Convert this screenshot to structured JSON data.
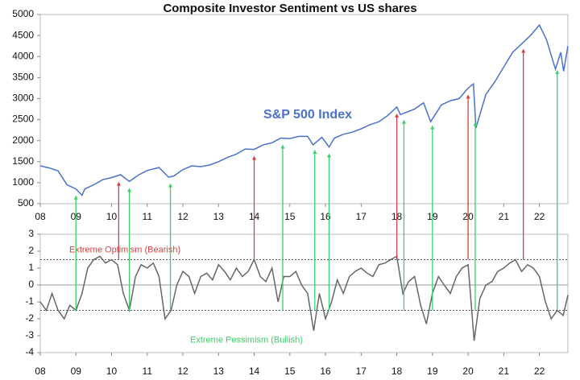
{
  "chart_data": [
    {
      "type": "line",
      "title": "Composite Investor Sentiment vs US shares",
      "annotation": "S&P 500 Index",
      "x": [
        2008,
        2008.25,
        2008.5,
        2008.75,
        2009,
        2009.17,
        2009.25,
        2009.5,
        2009.75,
        2010,
        2010.25,
        2010.5,
        2010.75,
        2011,
        2011.33,
        2011.6,
        2011.75,
        2012,
        2012.25,
        2012.5,
        2012.75,
        2013,
        2013.25,
        2013.5,
        2013.75,
        2014,
        2014.25,
        2014.5,
        2014.75,
        2015,
        2015.25,
        2015.5,
        2015.65,
        2015.9,
        2016.1,
        2016.25,
        2016.5,
        2016.75,
        2017,
        2017.25,
        2017.5,
        2017.75,
        2018,
        2018.1,
        2018.5,
        2018.75,
        2018.95,
        2019.25,
        2019.5,
        2019.75,
        2020,
        2020.15,
        2020.22,
        2020.5,
        2020.75,
        2021,
        2021.25,
        2021.5,
        2021.75,
        2022,
        2022.2,
        2022.45,
        2022.6,
        2022.68,
        2022.8
      ],
      "series": [
        {
          "color": "#4a72c8",
          "values": [
            1400,
            1350,
            1280,
            950,
            850,
            700,
            850,
            950,
            1070,
            1120,
            1190,
            1030,
            1180,
            1290,
            1360,
            1130,
            1160,
            1310,
            1400,
            1380,
            1420,
            1500,
            1600,
            1680,
            1800,
            1790,
            1900,
            1950,
            2060,
            2050,
            2100,
            2100,
            1900,
            2080,
            1850,
            2060,
            2150,
            2200,
            2280,
            2380,
            2450,
            2600,
            2800,
            2620,
            2750,
            2900,
            2450,
            2850,
            2950,
            3000,
            3250,
            3350,
            2300,
            3100,
            3400,
            3750,
            4100,
            4300,
            4500,
            4750,
            4400,
            3700,
            4100,
            3650,
            4250
          ]
        }
      ],
      "xlim": [
        2008,
        2022.8
      ],
      "xticks": [
        {
          "value": 2008,
          "label": "08"
        },
        {
          "value": 2009,
          "label": "09"
        },
        {
          "value": 2010,
          "label": "10"
        },
        {
          "value": 2011,
          "label": "11"
        },
        {
          "value": 2012,
          "label": "12"
        },
        {
          "value": 2013,
          "label": "13"
        },
        {
          "value": 2014,
          "label": "14"
        },
        {
          "value": 2015,
          "label": "15"
        },
        {
          "value": 2016,
          "label": "16"
        },
        {
          "value": 2017,
          "label": "17"
        },
        {
          "value": 2018,
          "label": "18"
        },
        {
          "value": 2019,
          "label": "19"
        },
        {
          "value": 2020,
          "label": "20"
        },
        {
          "value": 2021,
          "label": "21"
        },
        {
          "value": 2022,
          "label": "22"
        }
      ],
      "ylim": [
        500,
        5000
      ],
      "yticks": [
        500,
        1000,
        1500,
        2000,
        2500,
        3000,
        3500,
        4000,
        4500,
        5000
      ],
      "signals": [
        {
          "x": 2010.2,
          "color": "#d94040"
        },
        {
          "x": 2014,
          "color": "#d94040"
        },
        {
          "x": 2018,
          "color": "#d94040"
        },
        {
          "x": 2020,
          "color": "#d94040"
        },
        {
          "x": 2021.55,
          "color": "#d94040"
        },
        {
          "x": 2009,
          "color": "#3ccf6a"
        },
        {
          "x": 2010.5,
          "color": "#3ccf6a"
        },
        {
          "x": 2011.65,
          "color": "#3ccf6a"
        },
        {
          "x": 2014.8,
          "color": "#3ccf6a"
        },
        {
          "x": 2015.7,
          "color": "#3ccf6a"
        },
        {
          "x": 2016.1,
          "color": "#3ccf6a"
        },
        {
          "x": 2018.2,
          "color": "#3ccf6a"
        },
        {
          "x": 2019,
          "color": "#3ccf6a"
        },
        {
          "x": 2020.2,
          "color": "#3ccf6a"
        },
        {
          "x": 2022.5,
          "color": "#3ccf6a"
        }
      ]
    },
    {
      "type": "line",
      "x": [
        2008,
        2008.17,
        2008.33,
        2008.5,
        2008.67,
        2008.83,
        2009,
        2009.17,
        2009.33,
        2009.5,
        2009.67,
        2009.83,
        2010,
        2010.17,
        2010.33,
        2010.5,
        2010.67,
        2010.83,
        2011,
        2011.17,
        2011.33,
        2011.5,
        2011.67,
        2011.83,
        2012,
        2012.17,
        2012.33,
        2012.5,
        2012.67,
        2012.83,
        2013,
        2013.17,
        2013.33,
        2013.5,
        2013.67,
        2013.83,
        2014,
        2014.17,
        2014.33,
        2014.5,
        2014.67,
        2014.83,
        2015,
        2015.17,
        2015.33,
        2015.5,
        2015.67,
        2015.83,
        2016,
        2016.17,
        2016.33,
        2016.5,
        2016.67,
        2016.83,
        2017,
        2017.17,
        2017.33,
        2017.5,
        2017.67,
        2017.83,
        2018,
        2018.17,
        2018.33,
        2018.5,
        2018.67,
        2018.83,
        2019,
        2019.17,
        2019.33,
        2019.5,
        2019.67,
        2019.83,
        2020,
        2020.17,
        2020.33,
        2020.5,
        2020.67,
        2020.83,
        2021,
        2021.17,
        2021.33,
        2021.5,
        2021.67,
        2021.83,
        2022,
        2022.17,
        2022.33,
        2022.5,
        2022.67,
        2022.8
      ],
      "series": [
        {
          "color": "#666666",
          "values": [
            -1,
            -1.5,
            -0.5,
            -1.5,
            -2,
            -1.2,
            -1.5,
            -0.5,
            1,
            1.5,
            1.7,
            1.3,
            1.5,
            1.2,
            -0.5,
            -1.5,
            0.5,
            1.2,
            1,
            1.3,
            0.5,
            -2,
            -1.5,
            0,
            0.8,
            0.5,
            -0.5,
            0.5,
            0.7,
            0.3,
            1.2,
            0.8,
            0.3,
            1,
            0.5,
            0.8,
            1.5,
            0.5,
            0.2,
            1,
            -1,
            0.5,
            0.5,
            0.8,
            0,
            -0.5,
            -2.7,
            -0.5,
            -2,
            -1,
            0.3,
            -0.5,
            0.5,
            0.8,
            1,
            0.7,
            0.5,
            1.2,
            1.3,
            1.5,
            1.7,
            -0.5,
            0.2,
            0.5,
            -1.2,
            -2.3,
            -0.5,
            0.5,
            0,
            -0.5,
            0.5,
            1,
            1.2,
            -3.3,
            -0.8,
            0,
            0.2,
            0.8,
            1,
            1.3,
            1.5,
            0.8,
            1.2,
            1,
            0.5,
            -1,
            -2,
            -1.5,
            -1.8,
            -0.6
          ]
        }
      ],
      "xlim": [
        2008,
        2022.8
      ],
      "xticks": [
        {
          "value": 2008,
          "label": "08"
        },
        {
          "value": 2009,
          "label": "09"
        },
        {
          "value": 2010,
          "label": "10"
        },
        {
          "value": 2011,
          "label": "11"
        },
        {
          "value": 2012,
          "label": "12"
        },
        {
          "value": 2013,
          "label": "13"
        },
        {
          "value": 2014,
          "label": "14"
        },
        {
          "value": 2015,
          "label": "15"
        },
        {
          "value": 2016,
          "label": "16"
        },
        {
          "value": 2017,
          "label": "17"
        },
        {
          "value": 2018,
          "label": "18"
        },
        {
          "value": 2019,
          "label": "19"
        },
        {
          "value": 2020,
          "label": "20"
        },
        {
          "value": 2021,
          "label": "21"
        },
        {
          "value": 2022,
          "label": "22"
        }
      ],
      "ylim": [
        -4,
        3
      ],
      "yticks": [
        3,
        2,
        1,
        0,
        -1,
        -2,
        -3,
        -4
      ],
      "thresholds": [
        {
          "value": 1.5,
          "label": "Extreme Optimism (Bearish)",
          "color": "#d94040"
        },
        {
          "value": -1.5,
          "label": "Extreme Pessimism (Bullish)",
          "color": "#3ccf6a"
        }
      ]
    }
  ]
}
